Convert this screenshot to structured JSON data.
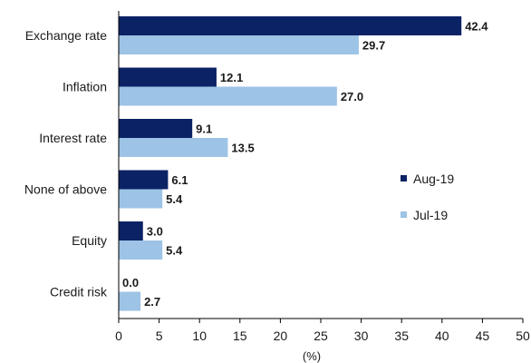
{
  "chart_data": {
    "type": "bar",
    "orientation": "horizontal",
    "categories": [
      "Exchange rate",
      "Inflation",
      "Interest rate",
      "None of above",
      "Equity",
      "Credit risk"
    ],
    "series": [
      {
        "name": "Aug-19",
        "color": "#0b2265",
        "values": [
          42.4,
          12.1,
          9.1,
          6.1,
          3.0,
          0.0
        ]
      },
      {
        "name": "Jul-19",
        "color": "#9dc3e6",
        "values": [
          29.7,
          27.0,
          13.5,
          5.4,
          5.4,
          2.7
        ]
      }
    ],
    "value_labels": [
      [
        "42.4",
        "12.1",
        "9.1",
        "6.1",
        "3.0",
        "0.0"
      ],
      [
        "29.7",
        "27.0",
        "13.5",
        "5.4",
        "5.4",
        "2.7"
      ]
    ],
    "x_ticks": [
      "0",
      "5",
      "10",
      "15",
      "20",
      "25",
      "30",
      "35",
      "40",
      "45",
      "50"
    ],
    "xlim": [
      0,
      50
    ],
    "xlabel": "(%)",
    "grid": false,
    "legend_position": "right"
  }
}
